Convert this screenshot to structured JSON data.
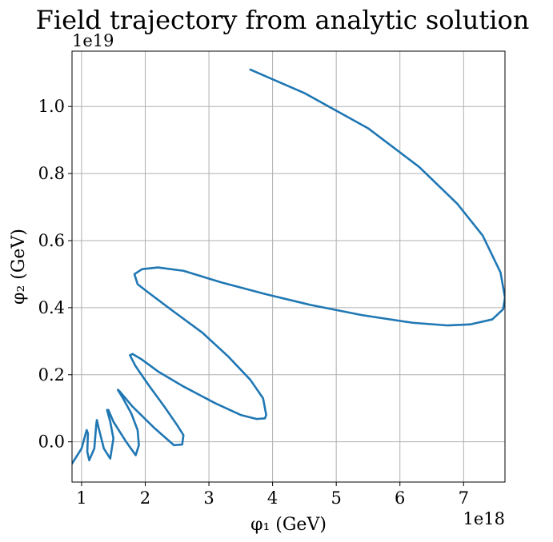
{
  "chart_data": {
    "type": "line",
    "title": "Field trajectory from analytic solution",
    "xlabel": "φ₁ (GeV)",
    "ylabel": "φ₂ (GeV)",
    "x_offset_label": "1e18",
    "y_offset_label": "1e19",
    "x_scale": 1e+18,
    "y_scale": 1e+19,
    "xlim": [
      0.85,
      7.65
    ],
    "ylim": [
      -0.12,
      1.165
    ],
    "x_ticks": [
      1,
      2,
      3,
      4,
      5,
      6,
      7
    ],
    "x_tick_labels": [
      "1",
      "2",
      "3",
      "4",
      "5",
      "6",
      "7"
    ],
    "y_ticks": [
      0.0,
      0.2,
      0.4,
      0.6,
      0.8,
      1.0
    ],
    "y_tick_labels": [
      "0.0",
      "0.2",
      "0.4",
      "0.6",
      "0.8",
      "1.0"
    ],
    "grid": true,
    "legend": "none",
    "color": "#1f77b4",
    "series": [
      {
        "x": [
          3.65,
          4.5,
          5.5,
          6.3,
          6.9,
          7.3,
          7.58,
          7.65,
          7.62,
          7.45,
          7.1,
          6.75,
          6.2,
          5.4,
          4.6,
          3.9,
          3.2,
          2.6,
          2.2,
          1.95,
          1.83,
          1.88,
          2.05,
          2.4,
          2.9,
          3.3,
          3.65,
          3.85,
          3.9,
          3.88,
          3.75,
          3.5,
          3.1,
          2.6,
          2.2,
          1.95,
          1.8,
          1.76,
          1.85,
          2.05,
          2.3,
          2.5,
          2.6,
          2.58,
          2.45,
          2.15,
          1.8,
          1.6,
          1.57,
          1.65,
          1.78,
          1.88,
          1.9,
          1.85,
          1.7,
          1.5,
          1.42,
          1.4,
          1.45,
          1.5,
          1.45,
          1.35,
          1.27,
          1.24,
          1.23,
          1.2,
          1.12,
          1.09,
          1.1,
          1.08,
          1.0,
          0.85
        ],
        "y": [
          1.11,
          1.04,
          0.935,
          0.82,
          0.71,
          0.615,
          0.505,
          0.43,
          0.395,
          0.365,
          0.35,
          0.347,
          0.355,
          0.378,
          0.408,
          0.44,
          0.475,
          0.51,
          0.52,
          0.515,
          0.5,
          0.47,
          0.445,
          0.395,
          0.325,
          0.255,
          0.185,
          0.13,
          0.08,
          0.07,
          0.068,
          0.08,
          0.115,
          0.165,
          0.21,
          0.245,
          0.262,
          0.258,
          0.225,
          0.17,
          0.105,
          0.05,
          0.02,
          -0.008,
          -0.01,
          0.04,
          0.105,
          0.15,
          0.155,
          0.13,
          0.085,
          0.035,
          -0.01,
          -0.04,
          0.0,
          0.06,
          0.095,
          0.095,
          0.06,
          0.01,
          -0.05,
          -0.02,
          0.04,
          0.065,
          0.05,
          -0.02,
          -0.055,
          -0.03,
          0.025,
          0.035,
          -0.02,
          -0.065
        ]
      }
    ]
  }
}
